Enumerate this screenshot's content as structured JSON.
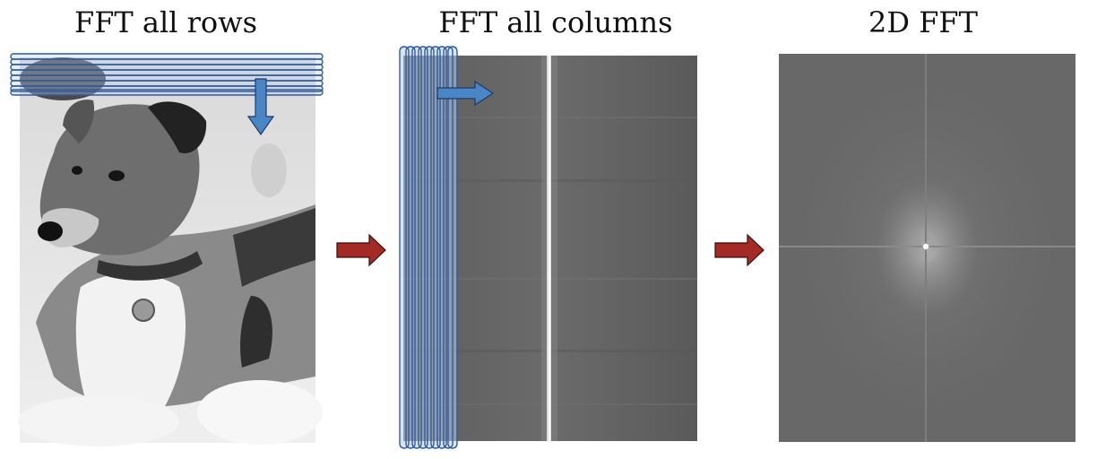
{
  "panels": [
    {
      "title": "FFT all rows"
    },
    {
      "title": "FFT all columns"
    },
    {
      "title": "2D FFT"
    }
  ],
  "colors": {
    "scan_band_fill": "#b9cde6",
    "scan_band_stroke": "#2f5aa0",
    "scan_arrow": "#4a86c5",
    "flow_arrow": "#a32a25",
    "spectrum_bg": "#6a6a6a"
  }
}
